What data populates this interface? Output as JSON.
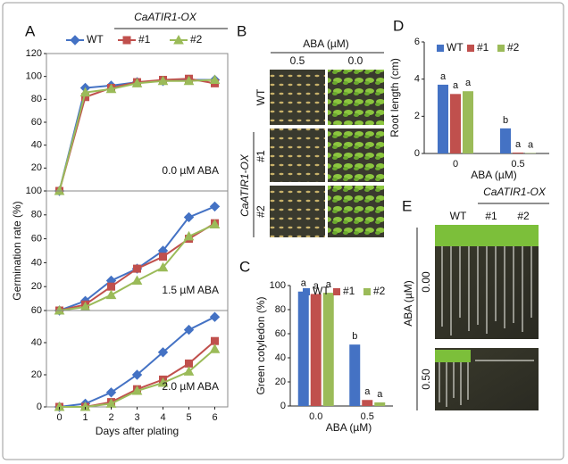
{
  "chart_data": [
    {
      "type": "line",
      "annotation": "0.0 µM ABA",
      "ylim": [
        0,
        120
      ],
      "yticks": [
        20,
        40,
        60,
        80,
        100,
        120
      ],
      "x": [
        0,
        1,
        2,
        3,
        4,
        5,
        6
      ],
      "series": [
        {
          "name": "WT",
          "color": "#4472c4",
          "values": [
            0,
            90,
            92,
            95,
            96,
            97,
            97
          ]
        },
        {
          "name": "#1",
          "color": "#c0504d",
          "values": [
            0,
            82,
            90,
            95,
            97,
            98,
            94
          ]
        },
        {
          "name": "#2",
          "color": "#9bbb59",
          "values": [
            0,
            86,
            89,
            94,
            96,
            96,
            97
          ]
        }
      ]
    },
    {
      "type": "line",
      "annotation": "1.5 µM ABA",
      "y_label": "Germination rate (%)",
      "ylim": [
        0,
        100
      ],
      "yticks": [
        20,
        40,
        60,
        80,
        100
      ],
      "x": [
        0,
        1,
        2,
        3,
        4,
        5,
        6
      ],
      "series": [
        {
          "color": "#4472c4",
          "values": [
            0,
            8,
            25,
            35,
            50,
            78,
            87
          ]
        },
        {
          "color": "#c0504d",
          "values": [
            0,
            5,
            20,
            35,
            45,
            60,
            73
          ]
        },
        {
          "color": "#9bbb59",
          "values": [
            0,
            3,
            13,
            25,
            36,
            62,
            72
          ]
        }
      ]
    },
    {
      "type": "line",
      "annotation": "2.0 µM ABA",
      "x_label": "Days after plating",
      "ylim": [
        0,
        60
      ],
      "yticks": [
        0,
        20,
        40,
        60
      ],
      "xlim": [
        -0.5,
        6.5
      ],
      "xticks": [
        0,
        1,
        2,
        3,
        4,
        5,
        6
      ],
      "x": [
        0,
        1,
        2,
        3,
        4,
        5,
        6
      ],
      "series": [
        {
          "color": "#4472c4",
          "values": [
            0,
            2,
            9,
            20,
            34,
            48,
            56
          ]
        },
        {
          "color": "#c0504d",
          "values": [
            0,
            0,
            3,
            11,
            17,
            27,
            41
          ]
        },
        {
          "color": "#9bbb59",
          "values": [
            0,
            0,
            2,
            10,
            15,
            22,
            36
          ]
        }
      ]
    },
    {
      "type": "bar",
      "y_label": "Green cotyledon (%)",
      "x_label": "ABA (µM)",
      "categories": [
        "0.0",
        "0.5"
      ],
      "ylim": [
        0,
        100
      ],
      "yticks": [
        0,
        20,
        40,
        60,
        80,
        100
      ],
      "series": [
        {
          "name": "WT",
          "color": "#4472c4",
          "values": [
            95,
            51
          ],
          "letters": [
            "a",
            "b"
          ]
        },
        {
          "name": "#1",
          "color": "#c0504d",
          "values": [
            93,
            5
          ],
          "letters": [
            "a",
            "a"
          ]
        },
        {
          "name": "#2",
          "color": "#9bbb59",
          "values": [
            94,
            3
          ],
          "letters": [
            "a",
            "a"
          ]
        }
      ]
    },
    {
      "type": "bar",
      "y_label": "Root length (cm)",
      "x_label": "ABA (µM)",
      "categories": [
        "0",
        "0.5"
      ],
      "ylim": [
        0,
        6
      ],
      "yticks": [
        0,
        2,
        4,
        6
      ],
      "series": [
        {
          "name": "WT",
          "color": "#4472c4",
          "values": [
            3.7,
            1.35
          ],
          "letters": [
            "a",
            "b"
          ]
        },
        {
          "name": "#1",
          "color": "#c0504d",
          "values": [
            3.2,
            0.05
          ],
          "letters": [
            "a",
            "a"
          ]
        },
        {
          "name": "#2",
          "color": "#9bbb59",
          "values": [
            3.35,
            0.02
          ],
          "letters": [
            "a",
            "a"
          ]
        }
      ]
    }
  ],
  "panel_labels": [
    "A",
    "B",
    "C",
    "D",
    "E"
  ],
  "panel_a_legend_title": "CaATIR1-OX",
  "panel_b": {
    "header": "ABA (µM)",
    "columns": [
      "0.5",
      "0.0"
    ],
    "rows": [
      "WT",
      "#1",
      "#2"
    ],
    "group": "CaATIR1-OX"
  },
  "panel_e": {
    "columns": [
      "WT",
      "#1",
      "#2"
    ],
    "group": "CaATIR1-OX",
    "axis": "ABA (µM)",
    "rows": [
      "0.00",
      "0.50"
    ]
  }
}
